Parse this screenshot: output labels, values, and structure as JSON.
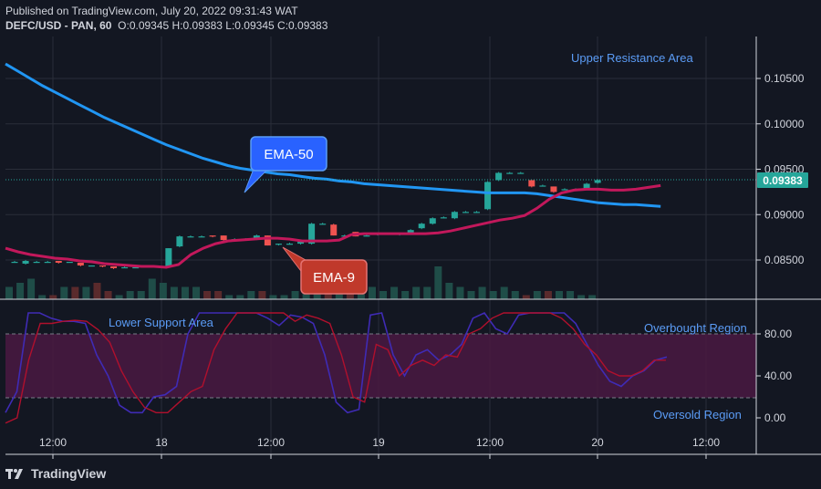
{
  "header": {
    "published": "Published on TradingView.com, July 20, 2022 09:31:43 WAT",
    "symbol_line": "DEFC/USD - PAN, 60",
    "ohlc": {
      "O": "0.09345",
      "H": "0.09383",
      "L": "0.09345",
      "C": "0.09383"
    }
  },
  "footer": {
    "brand": "TradingView"
  },
  "colors": {
    "up": "#26a69a",
    "down": "#ef5350",
    "ema50": "#2196f3",
    "ema9": "#c2185b",
    "stoch_k": "#3f2bb5",
    "stoch_d": "#b0102d",
    "band": "#4a1942"
  },
  "chart_data": [
    {
      "type": "candlestick",
      "x_ticks": [
        "12:00",
        "18",
        "12:00",
        "19",
        "12:00",
        "20",
        "12:00"
      ],
      "y_ticks": [
        "0.10500",
        "0.10000",
        "0.09500",
        "0.09000",
        "0.08500"
      ],
      "ylim": [
        0.0815,
        0.1077
      ],
      "last_price": "0.09383",
      "annotations": {
        "upper_resistance": "Upper Resistance Area",
        "ema50_label": "EMA-50",
        "ema9_label": "EMA-9"
      },
      "candles": [
        {
          "o": 0.0848,
          "c": 0.0848,
          "h": 0.0849,
          "l": 0.0847
        },
        {
          "o": 0.0846,
          "c": 0.0849,
          "h": 0.085,
          "l": 0.0845
        },
        {
          "o": 0.0848,
          "c": 0.0848,
          "h": 0.0849,
          "l": 0.0847
        },
        {
          "o": 0.0848,
          "c": 0.0848,
          "h": 0.0849,
          "l": 0.0847
        },
        {
          "o": 0.0849,
          "c": 0.0847,
          "h": 0.0849,
          "l": 0.0846
        },
        {
          "o": 0.0848,
          "c": 0.0848,
          "h": 0.0848,
          "l": 0.0847
        },
        {
          "o": 0.0847,
          "c": 0.0844,
          "h": 0.0847,
          "l": 0.0843
        },
        {
          "o": 0.0844,
          "c": 0.0844,
          "h": 0.0844,
          "l": 0.0843
        },
        {
          "o": 0.0844,
          "c": 0.0843,
          "h": 0.0844,
          "l": 0.0842
        },
        {
          "o": 0.0843,
          "c": 0.0841,
          "h": 0.0843,
          "l": 0.084
        },
        {
          "o": 0.0842,
          "c": 0.0842,
          "h": 0.0843,
          "l": 0.0841
        },
        {
          "o": 0.0842,
          "c": 0.0842,
          "h": 0.0843,
          "l": 0.0841
        },
        {
          "o": 0.0843,
          "c": 0.0843,
          "h": 0.0843,
          "l": 0.0842
        },
        {
          "o": 0.0843,
          "c": 0.0843,
          "h": 0.0844,
          "l": 0.0842
        },
        {
          "o": 0.0843,
          "c": 0.0863,
          "h": 0.0863,
          "l": 0.0843
        },
        {
          "o": 0.0865,
          "c": 0.0876,
          "h": 0.0877,
          "l": 0.0864
        },
        {
          "o": 0.0876,
          "c": 0.0876,
          "h": 0.0877,
          "l": 0.0875
        },
        {
          "o": 0.0876,
          "c": 0.0876,
          "h": 0.0877,
          "l": 0.0875
        },
        {
          "o": 0.0877,
          "c": 0.0876,
          "h": 0.0877,
          "l": 0.0875
        },
        {
          "o": 0.0877,
          "c": 0.0872,
          "h": 0.0877,
          "l": 0.0871
        },
        {
          "o": 0.0872,
          "c": 0.0873,
          "h": 0.0874,
          "l": 0.0871
        },
        {
          "o": 0.0873,
          "c": 0.0873,
          "h": 0.0874,
          "l": 0.0872
        },
        {
          "o": 0.0873,
          "c": 0.0877,
          "h": 0.0878,
          "l": 0.0872
        },
        {
          "o": 0.0877,
          "c": 0.0866,
          "h": 0.0877,
          "l": 0.0866
        },
        {
          "o": 0.0867,
          "c": 0.0868,
          "h": 0.0868,
          "l": 0.0866
        },
        {
          "o": 0.0868,
          "c": 0.0868,
          "h": 0.0869,
          "l": 0.0867
        },
        {
          "o": 0.0868,
          "c": 0.087,
          "h": 0.087,
          "l": 0.0867
        },
        {
          "o": 0.0868,
          "c": 0.089,
          "h": 0.0891,
          "l": 0.0867
        },
        {
          "o": 0.089,
          "c": 0.089,
          "h": 0.0891,
          "l": 0.0889
        },
        {
          "o": 0.0889,
          "c": 0.0877,
          "h": 0.089,
          "l": 0.0877
        },
        {
          "o": 0.0877,
          "c": 0.0877,
          "h": 0.0878,
          "l": 0.0876
        },
        {
          "o": 0.0881,
          "c": 0.0876,
          "h": 0.0881,
          "l": 0.0876
        },
        {
          "o": 0.0877,
          "c": 0.0877,
          "h": 0.0878,
          "l": 0.0876
        },
        {
          "o": 0.0878,
          "c": 0.0879,
          "h": 0.088,
          "l": 0.0877
        },
        {
          "o": 0.0879,
          "c": 0.0879,
          "h": 0.088,
          "l": 0.0878
        },
        {
          "o": 0.0878,
          "c": 0.0879,
          "h": 0.088,
          "l": 0.0877
        },
        {
          "o": 0.0879,
          "c": 0.0883,
          "h": 0.0884,
          "l": 0.0878
        },
        {
          "o": 0.0885,
          "c": 0.089,
          "h": 0.0891,
          "l": 0.0884
        },
        {
          "o": 0.089,
          "c": 0.0896,
          "h": 0.0897,
          "l": 0.0889
        },
        {
          "o": 0.0897,
          "c": 0.0897,
          "h": 0.0898,
          "l": 0.0896
        },
        {
          "o": 0.0896,
          "c": 0.0903,
          "h": 0.0904,
          "l": 0.0895
        },
        {
          "o": 0.0903,
          "c": 0.0903,
          "h": 0.0904,
          "l": 0.0902
        },
        {
          "o": 0.0903,
          "c": 0.0903,
          "h": 0.0904,
          "l": 0.0902
        },
        {
          "o": 0.0906,
          "c": 0.0936,
          "h": 0.0937,
          "l": 0.0905
        },
        {
          "o": 0.0938,
          "c": 0.0946,
          "h": 0.0947,
          "l": 0.0937
        },
        {
          "o": 0.0946,
          "c": 0.0946,
          "h": 0.0947,
          "l": 0.0945
        },
        {
          "o": 0.0946,
          "c": 0.0946,
          "h": 0.0947,
          "l": 0.0945
        },
        {
          "o": 0.0938,
          "c": 0.0931,
          "h": 0.0938,
          "l": 0.093
        },
        {
          "o": 0.0932,
          "c": 0.0932,
          "h": 0.0933,
          "l": 0.0931
        },
        {
          "o": 0.0931,
          "c": 0.0925,
          "h": 0.0931,
          "l": 0.0924
        },
        {
          "o": 0.0928,
          "c": 0.0928,
          "h": 0.0929,
          "l": 0.0927
        },
        {
          "o": 0.0928,
          "c": 0.0928,
          "h": 0.0929,
          "l": 0.0927
        },
        {
          "o": 0.0928,
          "c": 0.0934,
          "h": 0.0935,
          "l": 0.0927
        },
        {
          "o": 0.0935,
          "c": 0.0938,
          "h": 0.0939,
          "l": 0.0934
        }
      ],
      "volume": [
        3,
        4,
        5,
        1,
        1,
        3,
        3,
        3,
        4,
        2,
        1,
        2,
        2,
        5,
        4,
        3,
        3,
        3,
        2,
        2,
        1,
        1,
        2,
        2,
        1,
        1,
        2,
        2,
        4,
        2,
        3,
        2,
        6,
        3,
        2,
        3,
        2,
        3,
        3,
        8,
        4,
        3,
        2,
        3,
        2,
        3,
        2,
        1,
        2,
        2,
        2,
        2,
        1,
        1
      ],
      "ema50": [
        0.1066,
        0.1058,
        0.105,
        0.1042,
        0.1035,
        0.1028,
        0.1021,
        0.1014,
        0.1007,
        0.1001,
        0.0995,
        0.0989,
        0.0983,
        0.0977,
        0.0972,
        0.0967,
        0.0962,
        0.0958,
        0.0954,
        0.0951,
        0.0949,
        0.0947,
        0.0945,
        0.0944,
        0.0942,
        0.094,
        0.0939,
        0.0937,
        0.0936,
        0.0934,
        0.0933,
        0.0932,
        0.0931,
        0.093,
        0.0929,
        0.0928,
        0.0927,
        0.0926,
        0.0925,
        0.0924,
        0.0924,
        0.0924,
        0.0924,
        0.0923,
        0.0921,
        0.0919,
        0.0917,
        0.0915,
        0.0913,
        0.0912,
        0.0911,
        0.0911,
        0.091,
        0.0909
      ],
      "ema9": [
        0.0863,
        0.0859,
        0.0856,
        0.0854,
        0.0852,
        0.0851,
        0.0849,
        0.0848,
        0.0846,
        0.0845,
        0.0844,
        0.0843,
        0.0843,
        0.0842,
        0.0845,
        0.0856,
        0.0863,
        0.0868,
        0.0871,
        0.0872,
        0.0873,
        0.0874,
        0.0874,
        0.0873,
        0.0871,
        0.0871,
        0.0871,
        0.0872,
        0.0878,
        0.0879,
        0.0879,
        0.0879,
        0.0879,
        0.0879,
        0.0879,
        0.088,
        0.0882,
        0.0885,
        0.0888,
        0.0891,
        0.0894,
        0.0896,
        0.0899,
        0.0907,
        0.0917,
        0.0924,
        0.0927,
        0.0928,
        0.0928,
        0.0927,
        0.0927,
        0.0928,
        0.093,
        0.0932
      ]
    },
    {
      "type": "line",
      "name": "stochastic",
      "y_ticks": [
        "80.00",
        "40.00",
        "0.00"
      ],
      "ylim": [
        -10,
        105
      ],
      "levels": [
        80,
        20
      ],
      "annotations": {
        "lower_support": "Lower Support Area",
        "overbought": "Overbought Region",
        "oversold": "Oversold Region"
      },
      "k": [
        5,
        25,
        100,
        100,
        95,
        92,
        92,
        90,
        60,
        40,
        12,
        5,
        5,
        20,
        22,
        30,
        80,
        100,
        100,
        100,
        100,
        100,
        100,
        95,
        88,
        98,
        96,
        90,
        60,
        15,
        5,
        8,
        98,
        100,
        60,
        40,
        60,
        65,
        55,
        60,
        70,
        95,
        100,
        85,
        80,
        98,
        100,
        100,
        100,
        100,
        90,
        70,
        50,
        35,
        30,
        40,
        45,
        55,
        58
      ],
      "d": [
        -5,
        0,
        55,
        90,
        90,
        92,
        93,
        92,
        84,
        72,
        45,
        25,
        10,
        5,
        5,
        15,
        25,
        30,
        65,
        85,
        100,
        100,
        100,
        100,
        100,
        92,
        98,
        95,
        90,
        60,
        20,
        15,
        70,
        65,
        40,
        50,
        55,
        50,
        60,
        58,
        80,
        85,
        95,
        100,
        100,
        100,
        100,
        100,
        95,
        85,
        70,
        60,
        45,
        40,
        40,
        45,
        55,
        55
      ]
    }
  ]
}
